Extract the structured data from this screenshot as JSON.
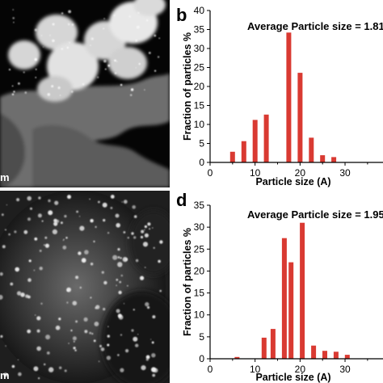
{
  "images": {
    "top_scale_label": "m",
    "bottom_scale_label": "m"
  },
  "chart_data": [
    {
      "type": "bar",
      "panel_label": "b",
      "annotation": "Average Particle size = 1.81",
      "xlabel": "Particle size (A)",
      "ylabel": "Fraction of particles %",
      "xlim": [
        0,
        37
      ],
      "ylim": [
        0,
        40
      ],
      "xticks": [
        0,
        10,
        20,
        30
      ],
      "yticks": [
        0,
        5,
        10,
        15,
        20,
        25,
        30,
        35,
        40
      ],
      "x": [
        5,
        7.5,
        10,
        12.5,
        17.5,
        20,
        22.5,
        25,
        27.5,
        30
      ],
      "values": [
        2.8,
        5.6,
        11.2,
        12.6,
        34.2,
        23.6,
        6.5,
        1.9,
        1.4,
        0
      ],
      "bar_color": "#d93a32",
      "grid": false
    },
    {
      "type": "bar",
      "panel_label": "d",
      "annotation": "Average Particle size = 1.95",
      "xlabel": "Particle size (A)",
      "ylabel": "Fraction of particles %",
      "xlim": [
        0,
        37
      ],
      "ylim": [
        0,
        35
      ],
      "xticks": [
        0,
        10,
        20,
        30
      ],
      "yticks": [
        0,
        5,
        10,
        15,
        20,
        25,
        30,
        35
      ],
      "x": [
        6,
        12,
        14,
        16.5,
        18,
        20.5,
        23,
        25.5,
        28,
        30.5
      ],
      "values": [
        0.4,
        4.8,
        6.8,
        27.5,
        22.0,
        31.0,
        3.0,
        1.8,
        1.6,
        0.9
      ],
      "bar_color": "#d93a32",
      "grid": false
    }
  ]
}
